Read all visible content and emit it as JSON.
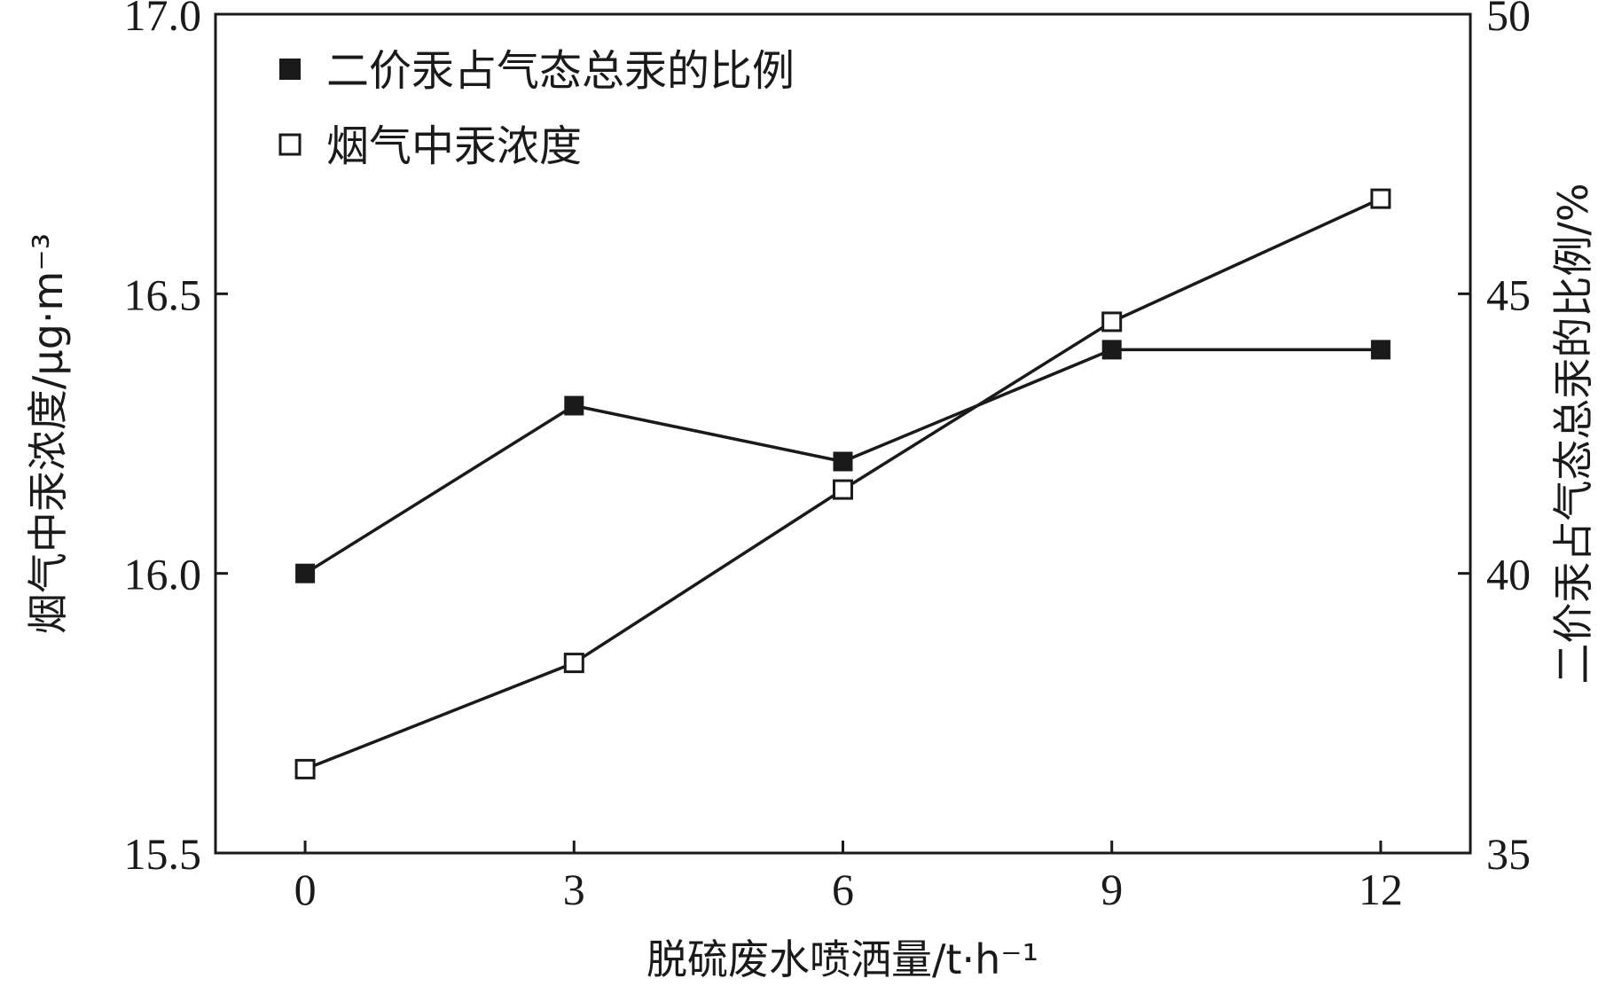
{
  "chart_data": {
    "type": "line",
    "x": [
      0,
      3,
      6,
      9,
      12
    ],
    "xticks": [
      "0",
      "3",
      "6",
      "9",
      "12"
    ],
    "xlim": [
      -1,
      13
    ],
    "xlabel": "脱硫废水喷洒量/t·h⁻¹",
    "ylabel_left": "烟气中汞浓度/μg·m⁻³",
    "ylabel_right": "二价汞占气态总汞的比例/%",
    "ylim_left": [
      15.5,
      17.0
    ],
    "yticks_left": [
      "15.5",
      "16.0",
      "16.5",
      "17.0"
    ],
    "ylim_right": [
      35,
      50
    ],
    "yticks_right": [
      "35",
      "40",
      "45",
      "50"
    ],
    "grid": false,
    "legend_position": "top-left",
    "series": [
      {
        "name": "二价汞占气态总汞的比例",
        "axis": "right",
        "marker": "filled-square",
        "values": [
          40.0,
          43.0,
          42.0,
          44.0,
          44.0
        ]
      },
      {
        "name": "烟气中汞浓度",
        "axis": "left",
        "marker": "open-square",
        "values": [
          15.65,
          15.84,
          16.15,
          16.45,
          16.67
        ]
      }
    ]
  }
}
